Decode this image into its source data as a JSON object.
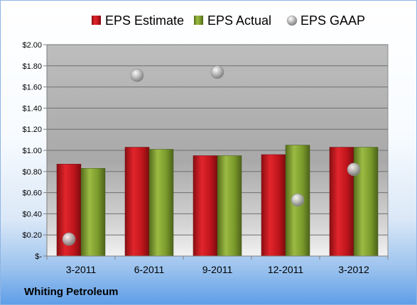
{
  "company_label": "Whiting Petroleum",
  "chart_data": {
    "type": "bar",
    "categories": [
      "3-2011",
      "6-2011",
      "9-2011",
      "12-2011",
      "3-2012"
    ],
    "series": [
      {
        "name": "EPS Estimate",
        "kind": "bar",
        "color": "#c0151c",
        "values": [
          0.87,
          1.03,
          0.95,
          0.96,
          1.03
        ]
      },
      {
        "name": "EPS Actual",
        "kind": "bar",
        "color": "#7a9a2b",
        "values": [
          0.83,
          1.01,
          0.95,
          1.05,
          1.03
        ]
      },
      {
        "name": "EPS GAAP",
        "kind": "point",
        "color": "#a7a7a7",
        "values": [
          0.16,
          1.71,
          1.74,
          0.53,
          0.82
        ]
      }
    ],
    "ylim": [
      0,
      2
    ],
    "yticks": [
      0,
      0.2,
      0.4,
      0.6,
      0.8,
      1.0,
      1.2,
      1.4,
      1.6,
      1.8,
      2.0
    ],
    "ytick_labels": [
      "$-",
      "$0.20",
      "$0.40",
      "$0.60",
      "$0.80",
      "$1.00",
      "$1.20",
      "$1.40",
      "$1.60",
      "$1.80",
      "$2.00"
    ],
    "grid": true,
    "legend": "top"
  }
}
